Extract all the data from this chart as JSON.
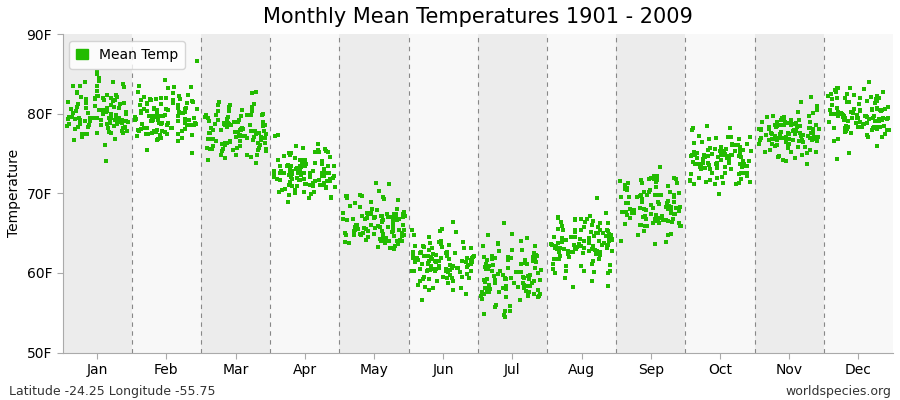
{
  "title": "Monthly Mean Temperatures 1901 - 2009",
  "ylabel": "Temperature",
  "ylim": [
    50,
    90
  ],
  "yticks": [
    50,
    60,
    70,
    80,
    90
  ],
  "ytick_labels": [
    "50F",
    "60F",
    "70F",
    "80F",
    "90F"
  ],
  "months": [
    "Jan",
    "Feb",
    "Mar",
    "Apr",
    "May",
    "Jun",
    "Jul",
    "Aug",
    "Sep",
    "Oct",
    "Nov",
    "Dec"
  ],
  "month_means": [
    80.0,
    79.5,
    77.5,
    72.5,
    66.5,
    61.5,
    59.5,
    63.5,
    68.5,
    74.0,
    77.5,
    80.0
  ],
  "month_stds": [
    2.0,
    1.8,
    2.0,
    1.8,
    2.0,
    2.0,
    2.0,
    2.0,
    2.0,
    2.0,
    1.8,
    1.8
  ],
  "n_years": 109,
  "seed": 12345,
  "dot_color": "#22bb00",
  "dot_size": 5,
  "bg_color": "#ffffff",
  "plot_bg_color": "#ffffff",
  "band_odd_color": "#ececec",
  "band_even_color": "#f8f8f8",
  "dashed_line_color": "#888888",
  "title_fontsize": 15,
  "label_fontsize": 10,
  "tick_fontsize": 10,
  "annotation_fontsize": 9,
  "latitude_text": "Latitude -24.25 Longitude -55.75",
  "credit_text": "worldspecies.org",
  "legend_label": "Mean Temp"
}
